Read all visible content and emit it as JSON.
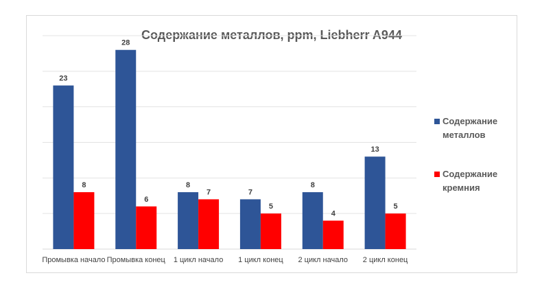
{
  "chart_data": {
    "type": "bar",
    "title": "Содержание металлов, ppm, Liebherr A944",
    "xlabel": "",
    "ylabel": "",
    "ylim": [
      0,
      30
    ],
    "grid": true,
    "legend_position": "right",
    "categories": [
      "Промывка начало",
      "Промывка конец",
      "1 цикл начало",
      "1 цикл конец",
      "2 цикл начало",
      "2 цикл конец"
    ],
    "series": [
      {
        "name": "Содержание металлов",
        "color": "#2e5597",
        "values": [
          23,
          28,
          8,
          7,
          8,
          13
        ]
      },
      {
        "name": "Содержание кремния",
        "color": "#ff0000",
        "values": [
          8,
          6,
          7,
          5,
          4,
          5
        ]
      }
    ]
  }
}
